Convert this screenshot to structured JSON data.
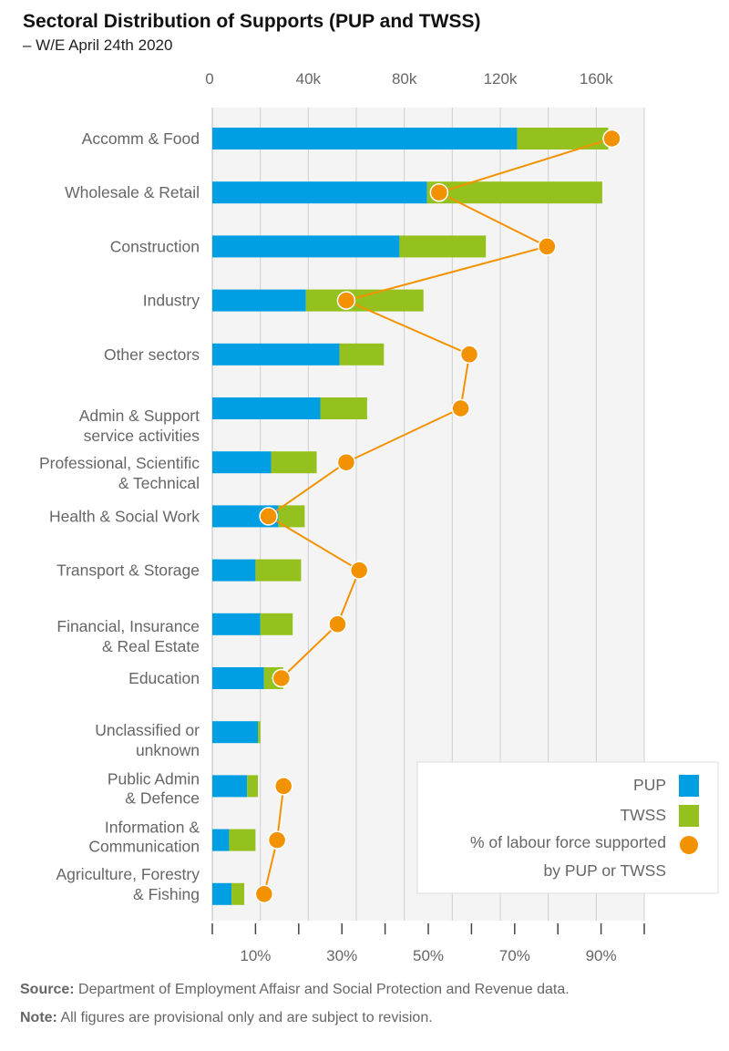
{
  "chart_data": {
    "type": "bar",
    "orientation": "horizontal",
    "stacked": true,
    "title": "Sectoral Distribution of Supports (PUP and TWSS)",
    "subtitle": "– W/E April 24th 2020",
    "categories": [
      [
        "Accomm & Food"
      ],
      [
        "Wholesale & Retail"
      ],
      [
        "Construction"
      ],
      [
        "Industry"
      ],
      [
        "Other sectors"
      ],
      [
        "Admin & Support",
        "service activities"
      ],
      [
        "Professional, Scientific",
        "& Technical"
      ],
      [
        "Health & Social Work"
      ],
      [
        "Transport & Storage"
      ],
      [
        "Financial, Insurance",
        "& Real Estate"
      ],
      [
        "Education"
      ],
      [
        "Unclassified or",
        "unknown"
      ],
      [
        "Public Admin",
        "& Defence"
      ],
      [
        "Information &",
        "Communication"
      ],
      [
        "Agriculture, Forestry",
        "& Fishing"
      ]
    ],
    "series": [
      {
        "name": "PUP",
        "color": "#009fe3",
        "values": [
          127000,
          89500,
          78000,
          39000,
          53000,
          45000,
          24500,
          27500,
          18000,
          20000,
          21500,
          19000,
          14500,
          7000,
          8000
        ]
      },
      {
        "name": "TWSS",
        "color": "#95c11f",
        "values": [
          38000,
          73000,
          36000,
          49000,
          18500,
          19500,
          19000,
          11000,
          19000,
          13500,
          8000,
          1000,
          4500,
          11000,
          5300
        ]
      }
    ],
    "line_series": {
      "name": "% of labour force supported by PUP or TWSS",
      "color": "#f39200",
      "values": [
        92.5,
        52.5,
        77.5,
        31,
        59.5,
        57.5,
        31,
        13,
        34,
        29,
        16,
        null,
        16.5,
        15,
        12
      ]
    },
    "x_top": {
      "range": [
        0,
        180000
      ],
      "tick_labels": [
        "0",
        "40k",
        "80k",
        "120k",
        "160k"
      ],
      "tick_values": [
        0,
        40000,
        80000,
        120000,
        160000
      ]
    },
    "x_bottom": {
      "range": [
        0,
        100
      ],
      "tick_labels": [
        "10%",
        "30%",
        "50%",
        "70%",
        "90%"
      ],
      "tick_values": [
        10,
        30,
        50,
        70,
        90
      ]
    },
    "grid": true,
    "legend": {
      "placement": "bottom-right",
      "items": [
        "PUP",
        "TWSS",
        "% of labour force supported",
        "by PUP or TWSS"
      ]
    }
  },
  "footer": {
    "source_label": "Source:",
    "source_text": " Department of Employment Affaisr and Social Protection and Revenue data.",
    "note_label": "Note:",
    "note_text": " All figures are provisional only and are subject to revision."
  }
}
